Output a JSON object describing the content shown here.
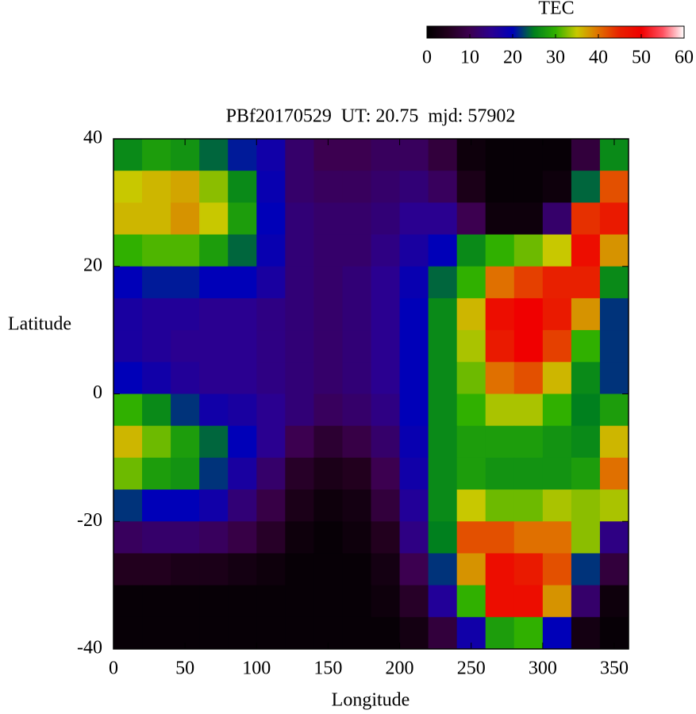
{
  "chart_data": {
    "type": "heatmap",
    "title": "PBf20170529  UT: 20.75  mjd: 57902",
    "xlabel": "Longitude",
    "ylabel": "Latitude",
    "xlim": [
      0,
      360
    ],
    "xticks": [
      0,
      50,
      100,
      150,
      200,
      250,
      300,
      350
    ],
    "ylim": [
      -40,
      40
    ],
    "yticks": [
      -40,
      -20,
      0,
      20,
      40
    ],
    "x": [
      10,
      30,
      50,
      70,
      90,
      110,
      130,
      150,
      170,
      190,
      210,
      230,
      250,
      270,
      290,
      310,
      330,
      350
    ],
    "y": [
      37.5,
      32.5,
      27.5,
      22.5,
      17.5,
      12.5,
      7.5,
      2.5,
      -2.5,
      -7.5,
      -12.5,
      -17.5,
      -22.5,
      -27.5,
      -32.5,
      -37.5
    ],
    "z": [
      [
        26,
        28,
        27,
        24,
        21,
        18,
        12,
        10,
        10,
        11,
        11,
        8,
        2,
        1,
        1,
        1,
        8,
        26
      ],
      [
        35,
        36,
        37,
        33,
        26,
        19,
        12,
        11,
        11,
        12,
        13,
        11,
        4,
        1,
        1,
        2,
        24,
        42
      ],
      [
        36,
        36,
        38,
        35,
        28,
        20,
        13,
        12,
        12,
        13,
        15,
        15,
        10,
        2,
        2,
        12,
        44,
        46
      ],
      [
        30,
        31,
        31,
        28,
        24,
        19,
        13,
        12,
        12,
        14,
        17,
        20,
        26,
        30,
        32,
        35,
        48,
        38
      ],
      [
        20,
        21,
        21,
        20,
        20,
        17,
        13,
        12,
        13,
        15,
        19,
        24,
        30,
        40,
        43,
        45,
        45,
        26
      ],
      [
        17,
        16,
        16,
        15,
        15,
        14,
        13,
        12,
        13,
        15,
        20,
        26,
        36,
        48,
        50,
        46,
        38,
        22
      ],
      [
        17,
        16,
        15,
        15,
        15,
        14,
        13,
        12,
        13,
        15,
        20,
        26,
        34,
        46,
        50,
        43,
        30,
        22
      ],
      [
        20,
        18,
        16,
        15,
        15,
        14,
        13,
        12,
        13,
        15,
        20,
        26,
        32,
        40,
        42,
        36,
        26,
        22
      ],
      [
        30,
        26,
        22,
        18,
        17,
        15,
        13,
        11,
        12,
        14,
        20,
        26,
        30,
        34,
        34,
        30,
        25,
        28
      ],
      [
        36,
        32,
        28,
        24,
        20,
        15,
        10,
        7,
        9,
        12,
        19,
        26,
        28,
        28,
        28,
        27,
        26,
        36
      ],
      [
        32,
        28,
        27,
        22,
        17,
        12,
        6,
        4,
        5,
        10,
        18,
        26,
        28,
        27,
        27,
        27,
        28,
        40
      ],
      [
        22,
        20,
        20,
        18,
        13,
        9,
        4,
        2,
        3,
        8,
        16,
        26,
        35,
        32,
        32,
        34,
        33,
        34
      ],
      [
        11,
        12,
        12,
        11,
        9,
        6,
        2,
        1,
        2,
        5,
        14,
        25,
        42,
        42,
        40,
        40,
        33,
        14
      ],
      [
        5,
        5,
        4,
        4,
        3,
        2,
        1,
        1,
        1,
        3,
        10,
        22,
        38,
        48,
        46,
        42,
        22,
        8
      ],
      [
        1,
        1,
        1,
        1,
        1,
        1,
        1,
        1,
        1,
        2,
        6,
        16,
        30,
        48,
        48,
        38,
        12,
        2
      ],
      [
        1,
        1,
        1,
        1,
        1,
        1,
        1,
        1,
        1,
        1,
        3,
        8,
        18,
        28,
        30,
        20,
        3,
        1
      ]
    ],
    "zlabel": "TEC",
    "zlim": [
      0,
      60
    ],
    "zticks": [
      0,
      10,
      20,
      30,
      40,
      50,
      60
    ],
    "colorscale": [
      "#000000",
      "#22001e",
      "#3c0050",
      "#2a0090",
      "#0000b8",
      "#00801e",
      "#30b000",
      "#c8c800",
      "#e07000",
      "#e82000",
      "#f00000",
      "#ff5060",
      "#ffffff"
    ]
  }
}
